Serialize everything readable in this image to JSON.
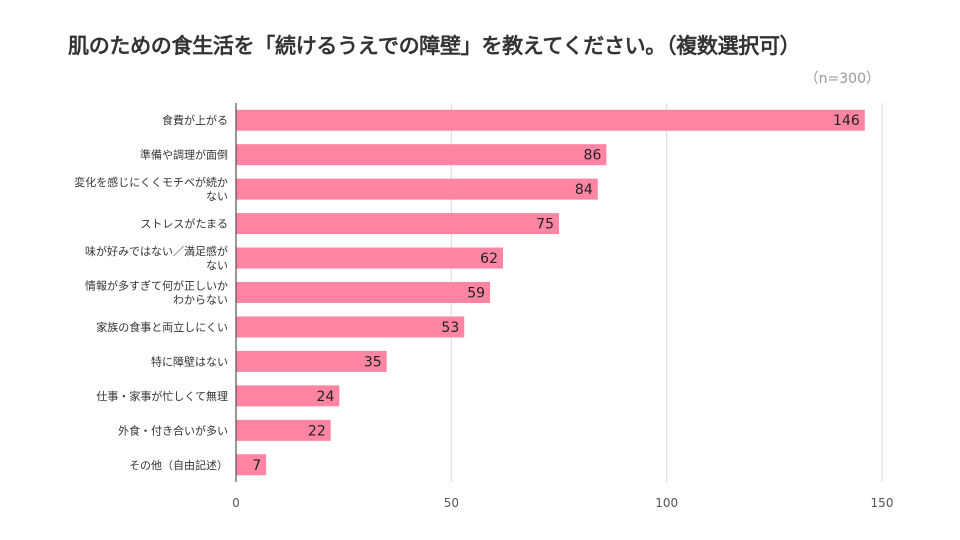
{
  "chart_data": {
    "type": "bar",
    "orientation": "horizontal",
    "title": "肌のための食生活を「続けるうえでの障壁」を教えてください。（複数選択可）",
    "subtitle": "（n=300）",
    "categories": [
      [
        "食費が上がる"
      ],
      [
        "準備や調理が面倒"
      ],
      [
        "変化を感じにくくモチベが続か",
        "ない"
      ],
      [
        "ストレスがたまる"
      ],
      [
        "味が好みではない／満足感が",
        "ない"
      ],
      [
        "情報が多すぎて何が正しいか",
        "わからない"
      ],
      [
        "家族の食事と両立しにくい"
      ],
      [
        "特に障壁はない"
      ],
      [
        "仕事・家事が忙しくて無理"
      ],
      [
        "外食・付き合いが多い"
      ],
      [
        "その他（自由記述）"
      ]
    ],
    "values": [
      146,
      86,
      84,
      75,
      62,
      59,
      53,
      35,
      24,
      22,
      7
    ],
    "xlim": [
      0,
      150
    ],
    "xticks": [
      "0",
      "50",
      "100",
      "150"
    ],
    "grid": true,
    "bar_color": "#ff85a2",
    "grid_color": "#d9d9d9",
    "axis_color": "#333333"
  }
}
